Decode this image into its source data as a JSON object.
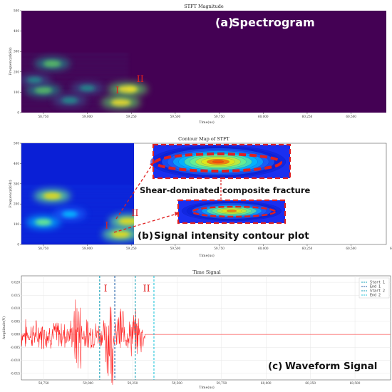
{
  "chart_data": [
    {
      "type": "heatmap",
      "title": "STFT Magnitude",
      "panel_label": "(a)",
      "panel_title": "Spectrogram",
      "xlabel": "Time(us)",
      "ylabel": "Frequency(kHz)",
      "xlim": [
        58625,
        60700
      ],
      "ylim": [
        0,
        500
      ],
      "xticks": [
        "58,750",
        "59,000",
        "59,250",
        "59,500",
        "59,750",
        "60,000",
        "60,250",
        "60,500"
      ],
      "yticks": [
        "0",
        "100",
        "200",
        "300",
        "400",
        "500"
      ],
      "colormap": [
        "#440154",
        "#3b528b",
        "#21918c",
        "#5ec962",
        "#fde725"
      ],
      "markers": [
        {
          "label": "I",
          "x": 59160,
          "y": 95
        },
        {
          "label": "II",
          "x": 59280,
          "y": 150
        }
      ],
      "blobs": [
        {
          "x": 59190,
          "y": 50,
          "val": 0.95
        },
        {
          "x": 59230,
          "y": 115,
          "val": 1.0
        },
        {
          "x": 58800,
          "y": 240,
          "val": 0.7
        },
        {
          "x": 58750,
          "y": 110,
          "val": 0.7
        },
        {
          "x": 58700,
          "y": 160,
          "val": 0.4
        },
        {
          "x": 59000,
          "y": 120,
          "val": 0.45
        },
        {
          "x": 58900,
          "y": 60,
          "val": 0.55
        }
      ]
    },
    {
      "type": "heatmap",
      "title": "Contour Map of STFT",
      "panel_label": "(b)",
      "panel_title": "Signal intensity contour plot",
      "xlabel": "Time(us)",
      "ylabel": "Frequency(kHz)",
      "xlim": [
        58625,
        60700
      ],
      "ylim": [
        0,
        500
      ],
      "xticks": [
        "58,750",
        "59,000",
        "59,250",
        "59,500",
        "59,750",
        "60,000",
        "60,250",
        "60,500",
        "60,750"
      ],
      "yticks": [
        "0",
        "100",
        "200",
        "300",
        "400",
        "500"
      ],
      "colormap": [
        "#0a1fd6",
        "#1e6cff",
        "#00c8ff",
        "#7dff7a",
        "#ffe600",
        "#ff2a00"
      ],
      "annotation": "Shear-dominated composite fracture",
      "markers": [
        {
          "label": "I",
          "x": 59100,
          "y": 80
        },
        {
          "label": "II",
          "x": 59250,
          "y": 140
        }
      ],
      "blobs": [
        {
          "x": 58800,
          "y": 240,
          "val": 0.75
        },
        {
          "x": 59190,
          "y": 50,
          "val": 0.8
        },
        {
          "x": 59230,
          "y": 115,
          "val": 0.85
        },
        {
          "x": 58750,
          "y": 110,
          "val": 0.6
        },
        {
          "x": 58900,
          "y": 150,
          "val": 0.45
        }
      ]
    },
    {
      "type": "line",
      "title": "Time Signal",
      "panel_label": "(c)",
      "panel_title": "Waveform Signal",
      "xlabel": "Time(us)",
      "ylabel": "Amplitude(V)",
      "xlim": [
        58625,
        60700
      ],
      "ylim": [
        -0.0175,
        0.0225
      ],
      "xticks": [
        "58,750",
        "59,000",
        "59,250",
        "59,500",
        "59,750",
        "60,000",
        "60,250",
        "60,500"
      ],
      "xtick_values": [
        58750,
        59000,
        59250,
        59500,
        59750,
        60000,
        60250,
        60500
      ],
      "yticks": [
        "0.020",
        "0.015",
        "0.010",
        "0.005",
        "0.000",
        "-0.005",
        "-0.010",
        "-0.015"
      ],
      "ytick_values": [
        0.02,
        0.015,
        0.01,
        0.005,
        0.0,
        -0.005,
        -0.01,
        -0.015
      ],
      "series": [
        {
          "name": "",
          "color": "#ff1a1a",
          "signal_end": 59320
        }
      ],
      "vlines": [
        {
          "name": "Start 1",
          "x": 59065,
          "color": "#17a2b8"
        },
        {
          "name": "End 1",
          "x": 59150,
          "color": "#1f5fa8"
        },
        {
          "name": "Start 2",
          "x": 59265,
          "color": "#17a2b8"
        },
        {
          "name": "End 2",
          "x": 59370,
          "color": "#26c6da"
        }
      ],
      "markers": [
        {
          "label": "I",
          "x": 59100
        },
        {
          "label": "II",
          "x": 59320
        }
      ],
      "legend_position": "top-right",
      "grid": true
    }
  ]
}
